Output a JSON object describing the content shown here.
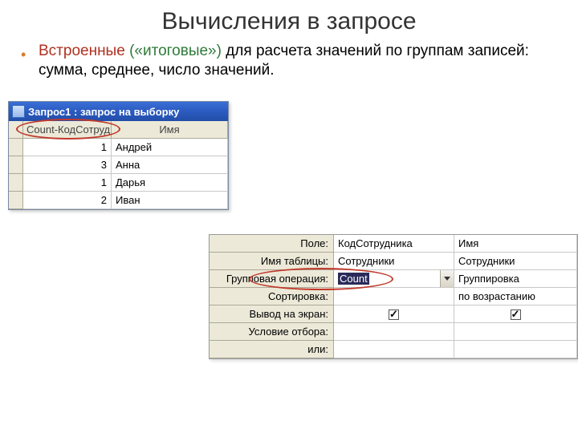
{
  "slide": {
    "title": "Вычисления в запросе",
    "bullet_label": "Встроенные",
    "paren_text": "(«итоговые»)",
    "body_rest": " для расчета значений по группам записей: сумма, среднее, число значений."
  },
  "query_window": {
    "title": "Запрос1 : запрос на выборку",
    "columns": [
      "Count-КодСотруд",
      "Имя"
    ],
    "rows": [
      {
        "count": "1",
        "name": "Андрей"
      },
      {
        "count": "3",
        "name": "Анна"
      },
      {
        "count": "1",
        "name": "Дарья"
      },
      {
        "count": "2",
        "name": "Иван"
      }
    ]
  },
  "design_grid": {
    "labels": {
      "field": "Поле:",
      "table": "Имя таблицы:",
      "groupop": "Групповая операция:",
      "sort": "Сортировка:",
      "show": "Вывод на экран:",
      "criteria": "Условие отбора:",
      "or": "или:"
    },
    "col1": {
      "field": "КодСотрудника",
      "table": "Сотрудники",
      "groupop": "Count",
      "sort": "",
      "show": true,
      "criteria": "",
      "or": ""
    },
    "col2": {
      "field": "Имя",
      "table": "Сотрудники",
      "groupop": "Группировка",
      "sort": "по возрастанию",
      "show": true,
      "criteria": "",
      "or": ""
    }
  },
  "colors": {
    "accent_orange": "#d97a2a",
    "accent_red": "#b03020",
    "accent_green": "#2e7a3a",
    "titlebar_bg": "#2b5bc0",
    "ellipse": "#c0392b"
  }
}
